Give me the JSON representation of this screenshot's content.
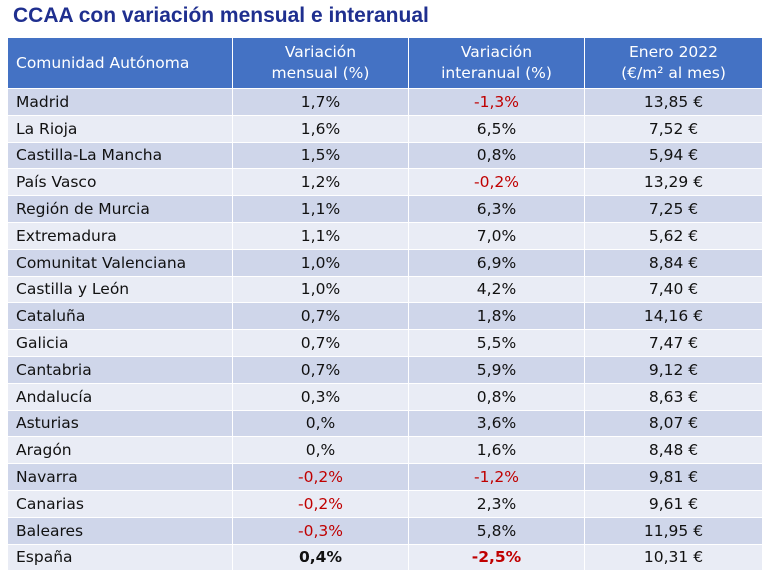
{
  "title": "CCAA con variación mensual e interanual",
  "table": {
    "headers": {
      "col1": "Comunidad Autónoma",
      "col2_line1": "Variación",
      "col2_line2": "mensual (%)",
      "col3_line1": "Variación",
      "col3_line2": "interanual (%)",
      "col4_line1": "Enero 2022",
      "col4_line2": "(€/m² al mes)"
    },
    "rows": [
      {
        "name": "Madrid",
        "mensual": "1,7%",
        "interanual": "-1,3%",
        "precio": "13,85 €"
      },
      {
        "name": "La Rioja",
        "mensual": "1,6%",
        "interanual": "6,5%",
        "precio": "7,52 €"
      },
      {
        "name": "Castilla-La Mancha",
        "mensual": "1,5%",
        "interanual": "0,8%",
        "precio": "5,94 €"
      },
      {
        "name": "País Vasco",
        "mensual": "1,2%",
        "interanual": "-0,2%",
        "precio": "13,29 €"
      },
      {
        "name": "Región de Murcia",
        "mensual": "1,1%",
        "interanual": "6,3%",
        "precio": "7,25 €"
      },
      {
        "name": "Extremadura",
        "mensual": "1,1%",
        "interanual": "7,0%",
        "precio": "5,62 €"
      },
      {
        "name": "Comunitat Valenciana",
        "mensual": "1,0%",
        "interanual": "6,9%",
        "precio": "8,84 €"
      },
      {
        "name": "Castilla y León",
        "mensual": "1,0%",
        "interanual": "4,2%",
        "precio": "7,40 €"
      },
      {
        "name": "Cataluña",
        "mensual": "0,7%",
        "interanual": "1,8%",
        "precio": "14,16 €"
      },
      {
        "name": "Galicia",
        "mensual": "0,7%",
        "interanual": "5,5%",
        "precio": "7,47 €"
      },
      {
        "name": "Cantabria",
        "mensual": "0,7%",
        "interanual": "5,9%",
        "precio": "9,12 €"
      },
      {
        "name": "Andalucía",
        "mensual": "0,3%",
        "interanual": "0,8%",
        "precio": "8,63 €"
      },
      {
        "name": "Asturias",
        "mensual": "0,%",
        "interanual": "3,6%",
        "precio": "8,07 €"
      },
      {
        "name": "Aragón",
        "mensual": "0,%",
        "interanual": "1,6%",
        "precio": "8,48 €"
      },
      {
        "name": "Navarra",
        "mensual": "-0,2%",
        "interanual": "-1,2%",
        "precio": "9,81 €"
      },
      {
        "name": "Canarias",
        "mensual": "-0,2%",
        "interanual": "2,3%",
        "precio": "9,61 €"
      },
      {
        "name": "Baleares",
        "mensual": "-0,3%",
        "interanual": "5,8%",
        "precio": "11,95 €"
      },
      {
        "name": "España",
        "mensual": "0,4%",
        "interanual": "-2,5%",
        "precio": "10,31 €"
      }
    ]
  },
  "colors": {
    "title": "#1f2f8f",
    "header_bg": "#4472c4",
    "row_dark": "#cfd6ea",
    "row_light": "#e9ecf5",
    "negative": "#c00000"
  }
}
